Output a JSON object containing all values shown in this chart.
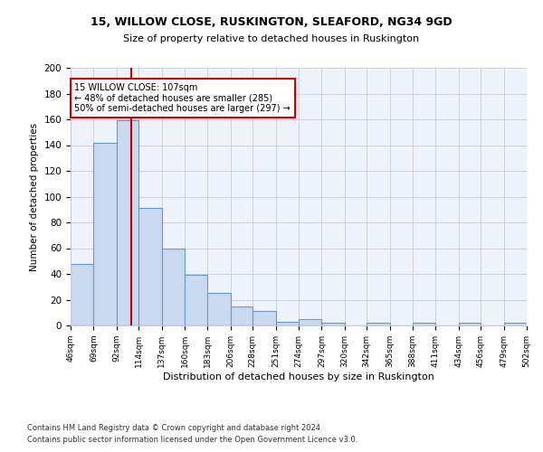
{
  "title1": "15, WILLOW CLOSE, RUSKINGTON, SLEAFORD, NG34 9GD",
  "title2": "Size of property relative to detached houses in Ruskington",
  "xlabel": "Distribution of detached houses by size in Ruskington",
  "ylabel": "Number of detached properties",
  "bin_edges": [
    46,
    69,
    92,
    114,
    137,
    160,
    183,
    206,
    228,
    251,
    274,
    297,
    320,
    342,
    365,
    388,
    411,
    434,
    456,
    479,
    502
  ],
  "bin_heights": [
    48,
    142,
    159,
    91,
    60,
    39,
    25,
    15,
    11,
    3,
    5,
    2,
    0,
    2,
    0,
    2,
    0,
    2,
    0,
    2
  ],
  "bar_color": "#c8d9f0",
  "bar_edge_color": "#6699cc",
  "vline_x": 107,
  "vline_color": "#cc0000",
  "annotation_line1": "15 WILLOW CLOSE: 107sqm",
  "annotation_line2": "← 48% of detached houses are smaller (285)",
  "annotation_line3": "50% of semi-detached houses are larger (297) →",
  "annotation_box_color": "#cc0000",
  "ylim": [
    0,
    200
  ],
  "yticks": [
    0,
    20,
    40,
    60,
    80,
    100,
    120,
    140,
    160,
    180,
    200
  ],
  "tick_labels": [
    "46sqm",
    "69sqm",
    "92sqm",
    "114sqm",
    "137sqm",
    "160sqm",
    "183sqm",
    "206sqm",
    "228sqm",
    "251sqm",
    "274sqm",
    "297sqm",
    "320sqm",
    "342sqm",
    "365sqm",
    "388sqm",
    "411sqm",
    "434sqm",
    "456sqm",
    "479sqm",
    "502sqm"
  ],
  "footnote1": "Contains HM Land Registry data © Crown copyright and database right 2024.",
  "footnote2": "Contains public sector information licensed under the Open Government Licence v3.0.",
  "bg_color": "#eef2fb",
  "grid_color": "#c8cce0"
}
